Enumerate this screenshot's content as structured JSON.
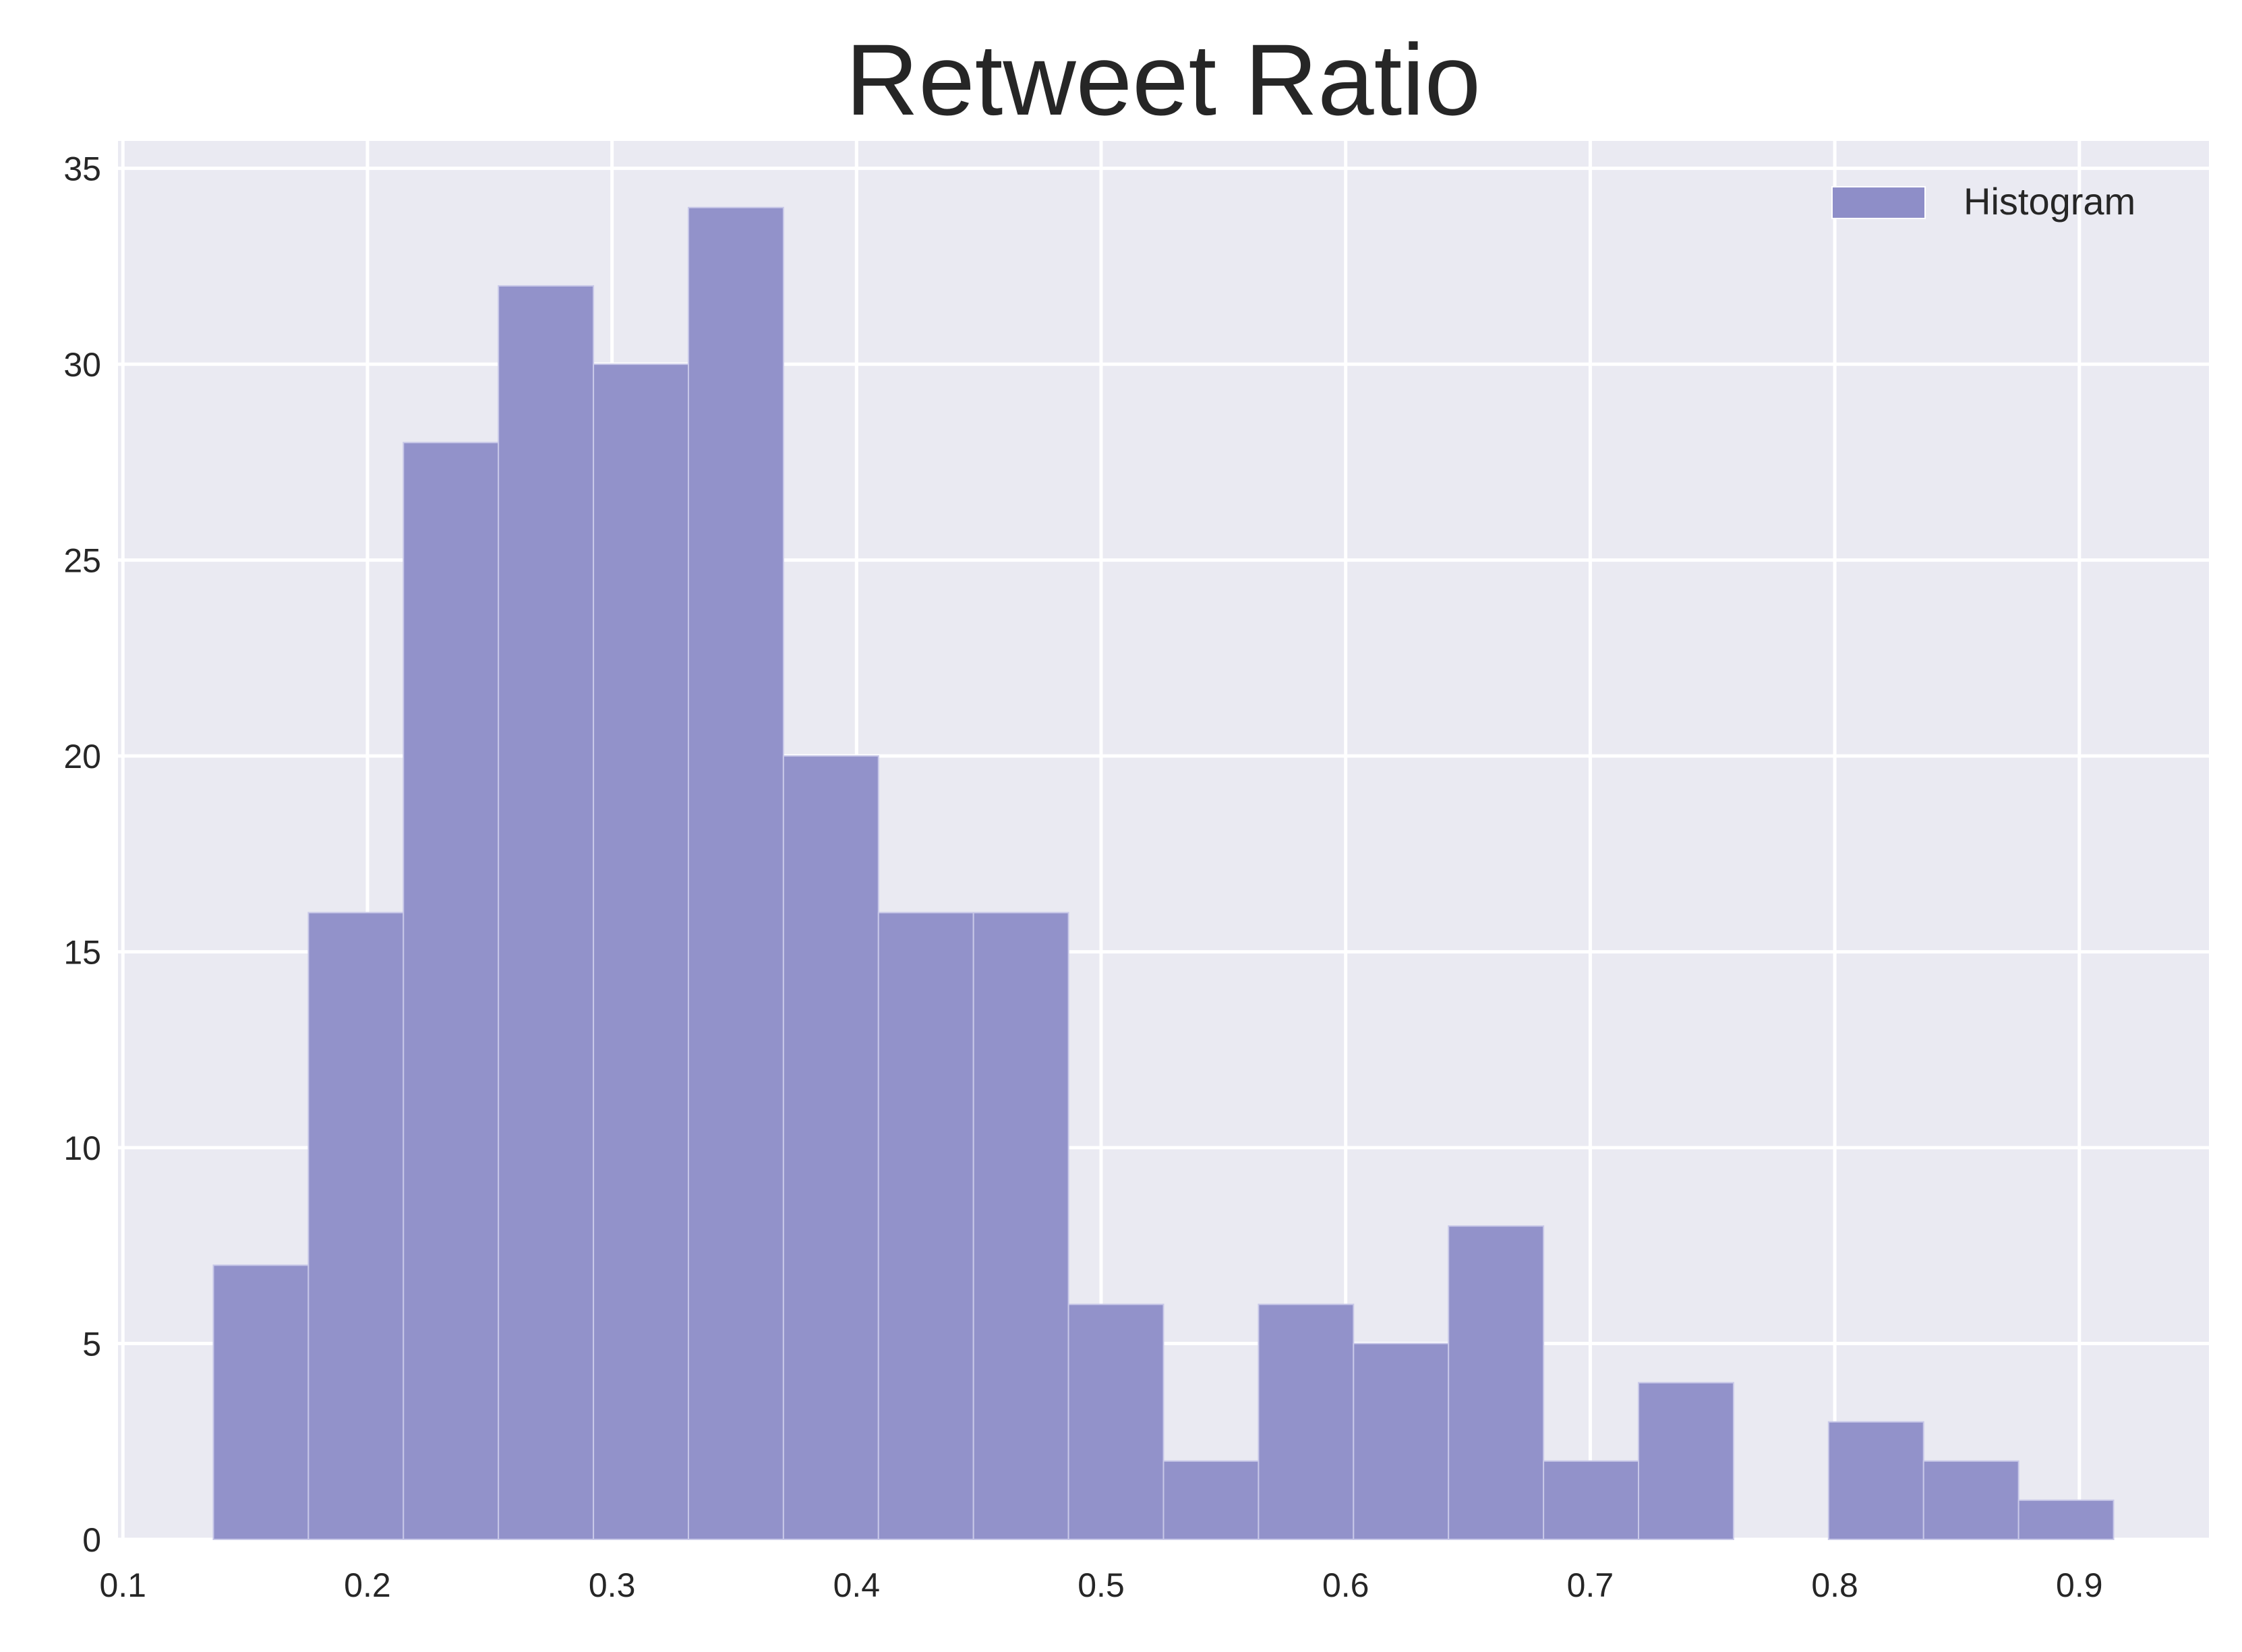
{
  "chart_data": {
    "type": "bar",
    "subtype": "histogram",
    "title": "Retweet Ratio",
    "xlabel": "",
    "ylabel": "",
    "bin_start": 0.137,
    "bin_end": 0.914,
    "counts": [
      7,
      16,
      28,
      32,
      30,
      34,
      20,
      16,
      16,
      6,
      2,
      6,
      5,
      8,
      2,
      4,
      0,
      3,
      2,
      1
    ],
    "xlim": [
      0.098,
      0.953
    ],
    "ylim": [
      0,
      35.7
    ],
    "xticks": [
      "0.1",
      "0.2",
      "0.3",
      "0.4",
      "0.5",
      "0.6",
      "0.7",
      "0.8",
      "0.9"
    ],
    "yticks": [
      "0",
      "5",
      "10",
      "15",
      "20",
      "25",
      "30",
      "35"
    ],
    "grid": true,
    "legend": {
      "position": "top-right",
      "entries": [
        "Histogram"
      ]
    },
    "colors": {
      "bar": "#8e8ec8",
      "background": "#eaeaf2",
      "grid": "#ffffff",
      "text": "#262626"
    }
  }
}
